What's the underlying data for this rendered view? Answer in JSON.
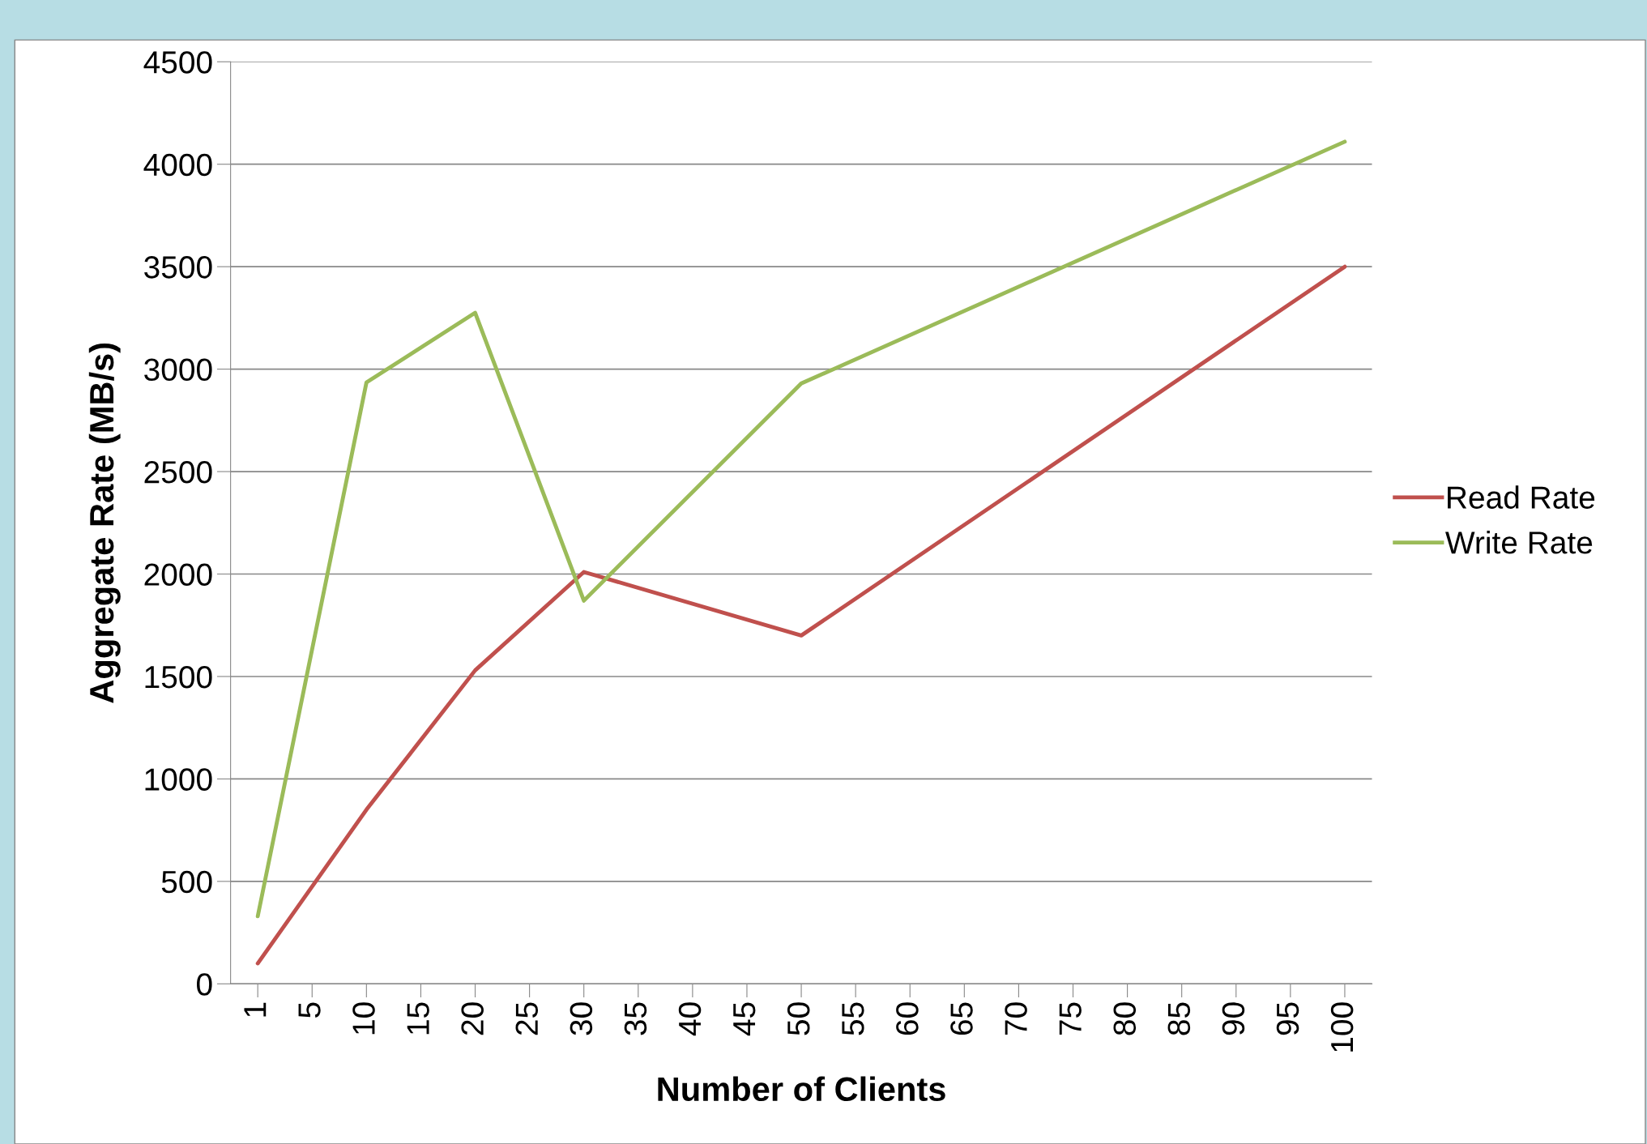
{
  "chart_data": {
    "type": "line",
    "xlabel": "Number of Clients",
    "ylabel": "Aggregate Rate (MB/s)",
    "categories": [
      "1",
      "5",
      "10",
      "15",
      "20",
      "25",
      "30",
      "35",
      "40",
      "45",
      "50",
      "55",
      "60",
      "65",
      "70",
      "75",
      "80",
      "85",
      "90",
      "95",
      "100"
    ],
    "series": [
      {
        "name": "Read Rate",
        "color": "#c0504d",
        "values": [
          100,
          null,
          850,
          null,
          1530,
          null,
          2010,
          null,
          null,
          null,
          1700,
          null,
          null,
          null,
          null,
          null,
          null,
          null,
          null,
          null,
          3500
        ]
      },
      {
        "name": "Write Rate",
        "color": "#9bbb59",
        "values": [
          330,
          null,
          2935,
          null,
          3275,
          null,
          1870,
          null,
          null,
          null,
          2930,
          null,
          null,
          null,
          null,
          null,
          null,
          null,
          null,
          null,
          4110
        ]
      }
    ],
    "ylim": [
      0,
      4500
    ],
    "yticks": [
      0,
      500,
      1000,
      1500,
      2000,
      2500,
      3000,
      3500,
      4000,
      4500
    ],
    "grid": "y",
    "legend": "right",
    "marker": "none",
    "line_style": "solid"
  }
}
